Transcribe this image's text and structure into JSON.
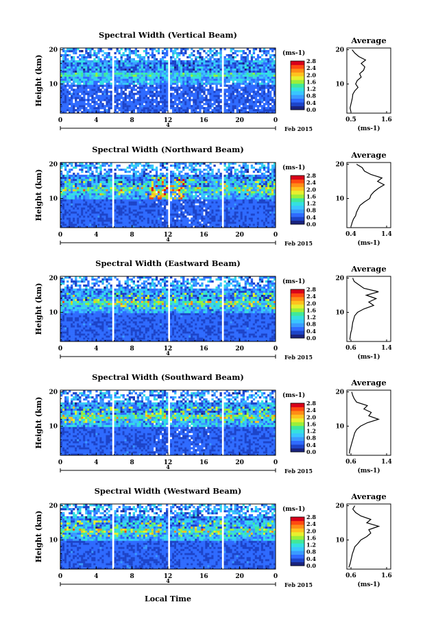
{
  "figure": {
    "xlabel": "Local Time",
    "date_label": "Feb 2015",
    "day_label": "4"
  },
  "chart_data": [
    {
      "type": "heatmap",
      "title": "Spectral Width (Vertical Beam)",
      "ylabel": "Height (km)",
      "xlim": [
        0,
        24
      ],
      "ylim": [
        1.5,
        20.5
      ],
      "x_ticks": [
        "0",
        "4",
        "8",
        "12",
        "16",
        "20",
        "0"
      ],
      "y_ticks": [
        "10",
        "20"
      ],
      "colorbar": {
        "unit": "(ms-1)",
        "range": [
          0,
          2.8
        ],
        "ticks": [
          "0.0",
          "0.4",
          "0.8",
          "1.2",
          "1.6",
          "2.0",
          "2.4",
          "2.8"
        ]
      },
      "average_profile": {
        "title": "Average",
        "xlabel": "(ms-1)",
        "xlim": [
          0.5,
          1.6
        ],
        "x_ticks": [
          "0.5",
          "1.6"
        ],
        "y_ticks": [
          "10",
          "20"
        ],
        "height_km": [
          2,
          3,
          4,
          5,
          6,
          7,
          8,
          9,
          10,
          11,
          12,
          13,
          14,
          15,
          16,
          17,
          18,
          19,
          20
        ],
        "width_ms": [
          0.6,
          0.58,
          0.6,
          0.62,
          0.64,
          0.65,
          0.7,
          0.78,
          0.72,
          0.76,
          0.86,
          0.82,
          0.92,
          0.95,
          0.86,
          0.97,
          0.8,
          0.7,
          0.63
        ]
      }
    },
    {
      "type": "heatmap",
      "title": "Spectral Width (Northward Beam)",
      "ylabel": "Height (km)",
      "xlim": [
        0,
        24
      ],
      "ylim": [
        1.5,
        20.5
      ],
      "x_ticks": [
        "0",
        "4",
        "8",
        "12",
        "16",
        "20",
        "0"
      ],
      "y_ticks": [
        "10",
        "20"
      ],
      "colorbar": {
        "unit": "(ms-1)",
        "range": [
          0,
          2.8
        ],
        "ticks": [
          "0.0",
          "0.4",
          "0.8",
          "1.2",
          "1.6",
          "2.0",
          "2.4",
          "2.8"
        ]
      },
      "average_profile": {
        "title": "Average",
        "xlabel": "(ms-1)",
        "xlim": [
          0.4,
          1.4
        ],
        "x_ticks": [
          "0.4",
          "1.4"
        ],
        "y_ticks": [
          "10",
          "20"
        ],
        "height_km": [
          2,
          3,
          4,
          5,
          6,
          7,
          8,
          9,
          10,
          11,
          12,
          13,
          14,
          15,
          16,
          17,
          18,
          19,
          20
        ],
        "width_ms": [
          0.5,
          0.52,
          0.55,
          0.6,
          0.62,
          0.66,
          0.7,
          0.8,
          0.92,
          0.95,
          1.02,
          1.12,
          1.25,
          1.1,
          1.2,
          0.95,
          0.8,
          0.75,
          0.62
        ]
      }
    },
    {
      "type": "heatmap",
      "title": "Spectral Width (Eastward Beam)",
      "ylabel": "Height (km)",
      "xlim": [
        0,
        24
      ],
      "ylim": [
        1.5,
        20.5
      ],
      "x_ticks": [
        "0",
        "4",
        "8",
        "12",
        "16",
        "20",
        "0"
      ],
      "y_ticks": [
        "10",
        "20"
      ],
      "colorbar": {
        "unit": "(ms-1)",
        "range": [
          0,
          2.8
        ],
        "ticks": [
          "0.0",
          "0.4",
          "0.8",
          "1.2",
          "1.6",
          "2.0",
          "2.4",
          "2.8"
        ]
      },
      "average_profile": {
        "title": "Average",
        "xlabel": "(ms-1)",
        "xlim": [
          0.5,
          1.4
        ],
        "x_ticks": [
          "0.6",
          "1.4"
        ],
        "y_ticks": [
          "10",
          "20"
        ],
        "height_km": [
          2,
          3,
          4,
          5,
          6,
          7,
          8,
          9,
          10,
          11,
          12,
          13,
          14,
          15,
          16,
          17,
          18,
          19,
          20
        ],
        "width_ms": [
          0.56,
          0.57,
          0.58,
          0.6,
          0.61,
          0.62,
          0.64,
          0.66,
          0.72,
          0.85,
          1.05,
          0.95,
          1.1,
          0.9,
          1.15,
          0.85,
          0.75,
          0.65,
          0.62
        ]
      }
    },
    {
      "type": "heatmap",
      "title": "Spectral Width (Southward Beam)",
      "ylabel": "Height (km)",
      "xlim": [
        0,
        24
      ],
      "ylim": [
        1.5,
        20.5
      ],
      "x_ticks": [
        "0",
        "4",
        "8",
        "12",
        "16",
        "20",
        "0"
      ],
      "y_ticks": [
        "10",
        "20"
      ],
      "colorbar": {
        "unit": "(ms-1)",
        "range": [
          0,
          2.8
        ],
        "ticks": [
          "0.0",
          "0.4",
          "0.8",
          "1.2",
          "1.6",
          "2.0",
          "2.4",
          "2.8"
        ]
      },
      "average_profile": {
        "title": "Average",
        "xlabel": "(ms-1)",
        "xlim": [
          0.5,
          1.4
        ],
        "x_ticks": [
          "0.6",
          "1.4"
        ],
        "y_ticks": [
          "10",
          "20"
        ],
        "height_km": [
          2,
          3,
          4,
          5,
          6,
          7,
          8,
          9,
          10,
          11,
          12,
          13,
          14,
          15,
          16,
          17,
          18,
          19,
          20
        ],
        "width_ms": [
          0.55,
          0.56,
          0.58,
          0.6,
          0.62,
          0.64,
          0.66,
          0.7,
          0.78,
          0.92,
          1.15,
          0.95,
          1.0,
          0.85,
          0.92,
          0.7,
          0.65,
          0.62,
          0.6
        ]
      }
    },
    {
      "type": "heatmap",
      "title": "Spectral Width (Westward Beam)",
      "ylabel": "Height (km)",
      "xlim": [
        0,
        24
      ],
      "ylim": [
        1.5,
        20.5
      ],
      "x_ticks": [
        "0",
        "4",
        "8",
        "12",
        "16",
        "20",
        "0"
      ],
      "y_ticks": [
        "10",
        "20"
      ],
      "colorbar": {
        "unit": "(ms-1)",
        "range": [
          0,
          2.8
        ],
        "ticks": [
          "0.0",
          "0.4",
          "0.8",
          "1.2",
          "1.6",
          "2.0",
          "2.4",
          "2.8"
        ]
      },
      "average_profile": {
        "title": "Average",
        "xlabel": "(ms-1)",
        "xlim": [
          0.5,
          1.6
        ],
        "x_ticks": [
          "0.6",
          "1.6"
        ],
        "y_ticks": [
          "10",
          "20"
        ],
        "height_km": [
          2,
          3,
          4,
          5,
          6,
          7,
          8,
          9,
          10,
          11,
          12,
          13,
          14,
          15,
          16,
          17,
          18,
          19,
          20
        ],
        "width_ms": [
          0.55,
          0.58,
          0.6,
          0.62,
          0.64,
          0.67,
          0.7,
          0.78,
          0.85,
          1.0,
          1.1,
          1.05,
          1.3,
          1.0,
          1.1,
          0.85,
          0.72,
          0.65,
          0.7
        ]
      }
    }
  ],
  "colormap": [
    "#1a237e",
    "#1d44c8",
    "#2f6bff",
    "#3a9bff",
    "#39c6ff",
    "#34e0e0",
    "#40e89a",
    "#9bef3a",
    "#e8ef2e",
    "#ffc21e",
    "#ff8c16",
    "#ff4a10",
    "#d7001a"
  ]
}
